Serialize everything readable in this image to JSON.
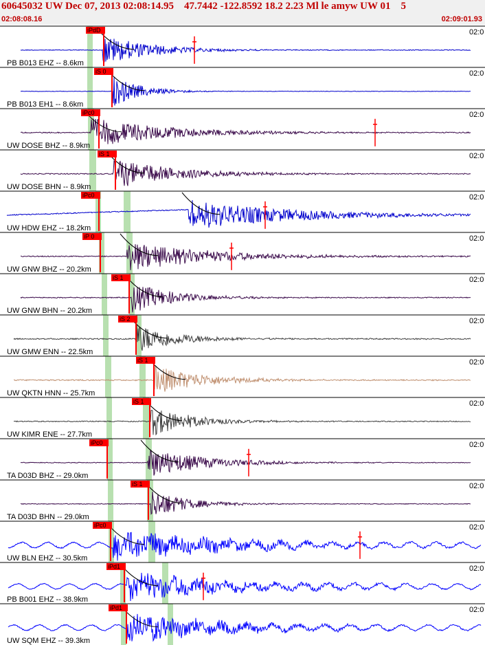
{
  "header": {
    "title": "60645032 UW Dec 07, 2013 02:08:14.95    47.7442 -122.8592 18.2 2.23 Ml le amyw UW 01    5",
    "start_time": "02:08:08.16",
    "end_time": "02:09:01.93"
  },
  "colors": {
    "header_text": "#c00000",
    "header_bg": "#f0f0f0",
    "pick_box": "#ff0000",
    "pick_line": "#ff0000",
    "theoretical_band": "#b8e0b0",
    "coda_curve": "#000000"
  },
  "clock_label": "02:0",
  "traces": [
    {
      "label": "PB B013 EHZ -- 8.6km",
      "color": "#0000cc",
      "pick": "iPdD",
      "amp": 3
    },
    {
      "label": "PB B013 EH1 -- 8.6km",
      "color": "#0000cc",
      "pick": "iS 0",
      "amp": 2
    },
    {
      "label": "UW DOSE BHZ -- 8.9km",
      "color": "#3a0a4a",
      "pick": "iPc0",
      "amp": 4
    },
    {
      "label": "UW DOSE BHN -- 8.9km",
      "color": "#3a0a4a",
      "pick": "iS 1",
      "amp": 4
    },
    {
      "label": "UW HDW EHZ -- 18.2km",
      "color": "#0000cc",
      "pick": "iPc0",
      "amp": 4
    },
    {
      "label": "UW GNW BHZ -- 20.2km",
      "color": "#3a0a4a",
      "pick": "iP 0",
      "amp": 4
    },
    {
      "label": "UW GNW BHN -- 20.2km",
      "color": "#3a0a4a",
      "pick": "iS 1",
      "amp": 4
    },
    {
      "label": "UW GMW ENN -- 22.5km",
      "color": "#404040",
      "pick": "iS 2",
      "amp": 5
    },
    {
      "label": "UW QKTN HNN -- 25.7km",
      "color": "#c09070",
      "pick": "iS 1",
      "amp": 5
    },
    {
      "label": "UW KIMR ENE -- 27.7km",
      "color": "#404040",
      "pick": "iS 1",
      "amp": 4
    },
    {
      "label": "TA D03D BHZ -- 29.0km",
      "color": "#3a0a4a",
      "pick": "iPc0",
      "amp": 3
    },
    {
      "label": "TA D03D BHN -- 29.0km",
      "color": "#3a0a4a",
      "pick": "iS 1",
      "amp": 3
    },
    {
      "label": "UW BLN EHZ -- 30.5km",
      "color": "#0000ff",
      "pick": "iPc0",
      "amp": 5
    },
    {
      "label": "PB B001 EHZ -- 38.9km",
      "color": "#0000ff",
      "pick": "iPd1",
      "amp": 4
    },
    {
      "label": "UW SQM EHZ -- 39.3km",
      "color": "#0000ff",
      "pick": "iPd1",
      "amp": 4
    }
  ]
}
